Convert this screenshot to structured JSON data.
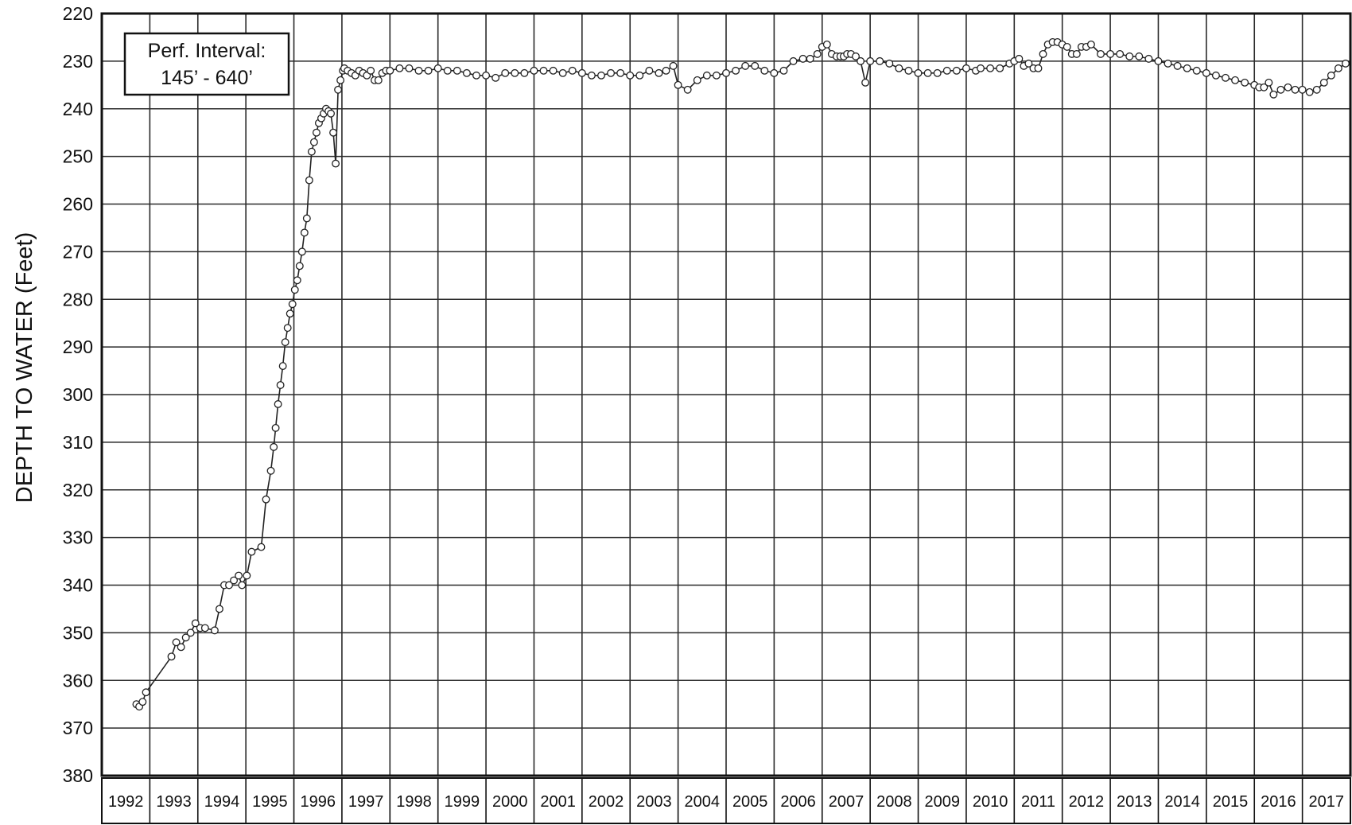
{
  "chart_data": {
    "type": "line",
    "title": "",
    "xlabel": "",
    "ylabel": "DEPTH TO WATER (Feet)",
    "ylim": [
      220,
      380
    ],
    "y_inverted": true,
    "xlim": [
      1992,
      2018
    ],
    "grid": true,
    "y_ticks": [
      "220",
      "230",
      "240",
      "250",
      "260",
      "270",
      "280",
      "290",
      "300",
      "310",
      "320",
      "330",
      "340",
      "350",
      "360",
      "370",
      "380"
    ],
    "x_tick_labels": [
      "1992",
      "1993",
      "1994",
      "1995",
      "1996",
      "1997",
      "1998",
      "1999",
      "2000",
      "2001",
      "2002",
      "2003",
      "2004",
      "2005",
      "2006",
      "2007",
      "2008",
      "2009",
      "2010",
      "2011",
      "2012",
      "2013",
      "2014",
      "2015",
      "2016",
      "2017"
    ],
    "annotation": {
      "line1": "Perf. Interval:",
      "line2": "145’ - 640’"
    },
    "series": [
      {
        "marker": "open-circle",
        "color": "#222222",
        "x": [
          1992.72,
          1992.78,
          1992.85,
          1992.92,
          1993.45,
          1993.55,
          1993.65,
          1993.75,
          1993.85,
          1993.95,
          1994.05,
          1994.15,
          1994.35,
          1994.45,
          1994.55,
          1994.65,
          1994.75,
          1994.85,
          1994.92,
          1995.02,
          1995.12,
          1995.32,
          1995.42,
          1995.52,
          1995.58,
          1995.62,
          1995.67,
          1995.72,
          1995.77,
          1995.82,
          1995.87,
          1995.92,
          1995.97,
          1996.02,
          1996.07,
          1996.12,
          1996.17,
          1996.22,
          1996.27,
          1996.32,
          1996.37,
          1996.42,
          1996.47,
          1996.52,
          1996.57,
          1996.62,
          1996.67,
          1996.72,
          1996.77,
          1996.82,
          1996.87,
          1996.92,
          1996.97,
          1997.02,
          1997.05,
          1997.12,
          1997.2,
          1997.28,
          1997.36,
          1997.44,
          1997.52,
          1997.6,
          1997.68,
          1997.76,
          1997.84,
          1997.92,
          1998.0,
          1998.2,
          1998.4,
          1998.6,
          1998.8,
          1999.0,
          1999.2,
          1999.4,
          1999.6,
          1999.8,
          2000.0,
          2000.2,
          2000.4,
          2000.6,
          2000.8,
          2001.0,
          2001.2,
          2001.4,
          2001.6,
          2001.8,
          2002.0,
          2002.2,
          2002.4,
          2002.6,
          2002.8,
          2003.0,
          2003.2,
          2003.4,
          2003.6,
          2003.75,
          2003.9,
          2004.0,
          2004.2,
          2004.4,
          2004.6,
          2004.8,
          2005.0,
          2005.2,
          2005.4,
          2005.6,
          2005.8,
          2006.0,
          2006.2,
          2006.4,
          2006.6,
          2006.75,
          2006.9,
          2007.0,
          2007.1,
          2007.2,
          2007.3,
          2007.38,
          2007.45,
          2007.52,
          2007.6,
          2007.7,
          2007.8,
          2007.9,
          2008.0,
          2008.2,
          2008.4,
          2008.6,
          2008.8,
          2009.0,
          2009.2,
          2009.4,
          2009.6,
          2009.8,
          2010.0,
          2010.2,
          2010.3,
          2010.5,
          2010.7,
          2010.9,
          2011.0,
          2011.1,
          2011.2,
          2011.3,
          2011.4,
          2011.5,
          2011.6,
          2011.7,
          2011.8,
          2011.9,
          2012.0,
          2012.1,
          2012.2,
          2012.3,
          2012.4,
          2012.5,
          2012.6,
          2012.8,
          2013.0,
          2013.2,
          2013.4,
          2013.6,
          2013.8,
          2014.0,
          2014.2,
          2014.4,
          2014.6,
          2014.8,
          2015.0,
          2015.2,
          2015.4,
          2015.6,
          2015.8,
          2016.0,
          2016.1,
          2016.2,
          2016.3,
          2016.4,
          2016.55,
          2016.7,
          2016.85,
          2017.0,
          2017.15,
          2017.3,
          2017.45,
          2017.6,
          2017.75,
          2017.9
        ],
        "y": [
          365,
          365.5,
          364.5,
          362.5,
          355,
          352,
          353,
          351,
          350,
          348,
          349,
          349,
          349.5,
          345,
          340,
          340,
          339,
          338,
          340,
          338,
          333,
          332,
          322,
          316,
          311,
          307,
          302,
          298,
          294,
          289,
          286,
          283,
          281,
          278,
          276,
          273,
          270,
          266,
          263,
          255,
          249,
          247,
          245,
          243,
          242,
          241,
          240,
          240.5,
          241,
          245,
          251.5,
          236,
          234,
          232,
          231.5,
          232,
          232.5,
          233,
          232,
          232.5,
          233,
          232,
          234,
          234,
          232.5,
          232,
          232,
          231.5,
          231.5,
          232,
          232,
          231.5,
          232,
          232,
          232.5,
          233,
          233,
          233.5,
          232.5,
          232.5,
          232.5,
          232,
          232,
          232,
          232.5,
          232,
          232.5,
          233,
          233,
          232.5,
          232.5,
          233,
          233,
          232,
          232.5,
          232,
          231,
          235,
          236,
          234,
          233,
          233,
          232.5,
          232,
          231,
          231,
          232,
          232.5,
          232,
          230,
          229.5,
          229.5,
          228.5,
          227,
          226.5,
          228.5,
          229,
          229,
          229,
          228.5,
          228.5,
          229,
          230,
          234.5,
          230,
          230,
          230.5,
          231.5,
          232,
          232.5,
          232.5,
          232.5,
          232,
          232,
          231.5,
          232,
          231.5,
          231.5,
          231.5,
          230.5,
          230,
          229.5,
          231,
          230.5,
          231.5,
          231.5,
          228.5,
          226.5,
          226,
          226,
          226.5,
          227,
          228.5,
          228.5,
          227,
          227,
          226.5,
          228.5,
          228.5,
          228.5,
          229,
          229,
          229.5,
          230,
          230.5,
          231,
          231.5,
          232,
          232.5,
          233,
          233.5,
          234,
          234.5,
          235,
          235.5,
          235.5,
          234.5,
          237,
          236,
          235.5,
          236,
          236,
          236.5,
          236,
          234.5,
          233,
          231.5,
          230.5
        ]
      }
    ]
  }
}
